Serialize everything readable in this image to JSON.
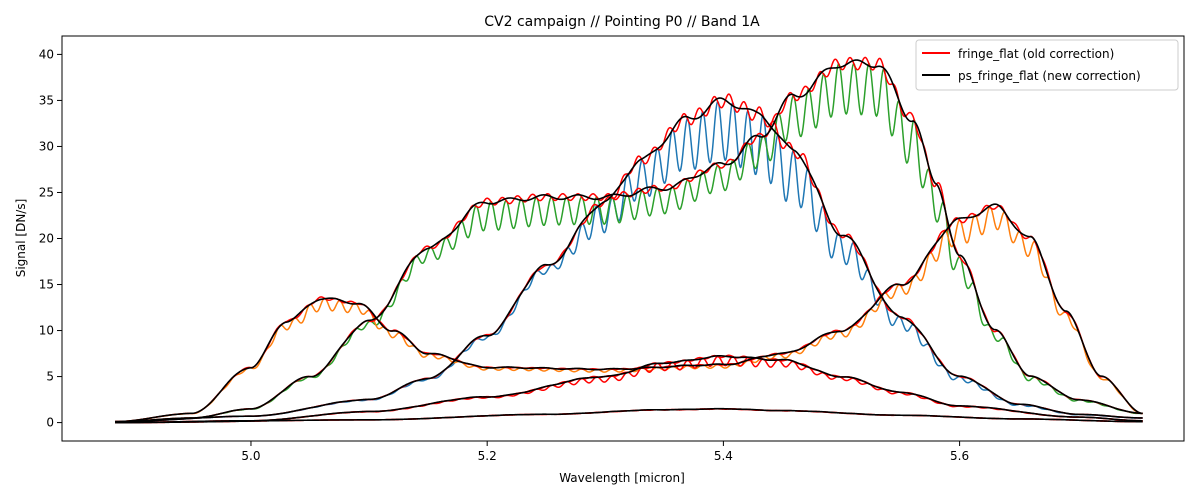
{
  "chart_data": {
    "type": "line",
    "title": "CV2 campaign // Pointing P0 // Band 1A",
    "xlabel": "Wavelength [micron]",
    "ylabel": "Signal [DN/s]",
    "xlim": [
      4.84,
      5.79
    ],
    "ylim": [
      -2,
      42
    ],
    "xticks": [
      5.0,
      5.2,
      5.4,
      5.6
    ],
    "xtick_labels": [
      "5.0",
      "5.2",
      "5.4",
      "5.6"
    ],
    "yticks": [
      0,
      5,
      10,
      15,
      20,
      25,
      30,
      35,
      40
    ],
    "ytick_labels": [
      "0",
      "5",
      "10",
      "15",
      "20",
      "25",
      "30",
      "35",
      "40"
    ],
    "grid": false,
    "legend_position": "upper-right",
    "legend": [
      {
        "label": "fringe_flat (old correction)",
        "color": "#ff0000"
      },
      {
        "label": "ps_fringe_flat (new correction)",
        "color": "#000000"
      }
    ],
    "colors": {
      "blue": "#1f77b4",
      "orange": "#ff7f0e",
      "green": "#2ca02c",
      "red": "#ff0000",
      "black": "#000000"
    },
    "x_range": [
      4.885,
      5.755
    ],
    "fringe_period_micron": 0.0128,
    "profiles": [
      {
        "color_key": "blue",
        "fringe_amplitude": [
          [
            4.885,
            0.02
          ],
          [
            5.25,
            0.05
          ],
          [
            5.3,
            0.14
          ],
          [
            5.45,
            0.2
          ],
          [
            5.55,
            0.12
          ],
          [
            5.755,
            0.05
          ]
        ],
        "envelope": [
          [
            4.885,
            0.1
          ],
          [
            5.0,
            0.7
          ],
          [
            5.1,
            2.5
          ],
          [
            5.15,
            4.8
          ],
          [
            5.2,
            9.5
          ],
          [
            5.25,
            17.0
          ],
          [
            5.3,
            24.0
          ],
          [
            5.33,
            28.5
          ],
          [
            5.37,
            33.0
          ],
          [
            5.4,
            35.0
          ],
          [
            5.43,
            33.5
          ],
          [
            5.46,
            29.5
          ],
          [
            5.5,
            20.5
          ],
          [
            5.55,
            11.5
          ],
          [
            5.6,
            5.0
          ],
          [
            5.65,
            2.0
          ],
          [
            5.7,
            0.9
          ],
          [
            5.755,
            0.5
          ]
        ]
      },
      {
        "color_key": "green",
        "fringe_amplitude": [
          [
            4.885,
            0.02
          ],
          [
            5.05,
            0.05
          ],
          [
            5.15,
            0.08
          ],
          [
            5.2,
            0.13
          ],
          [
            5.3,
            0.12
          ],
          [
            5.4,
            0.1
          ],
          [
            5.5,
            0.14
          ],
          [
            5.58,
            0.16
          ],
          [
            5.65,
            0.1
          ],
          [
            5.755,
            0.05
          ]
        ],
        "envelope": [
          [
            4.885,
            0.1
          ],
          [
            4.95,
            0.5
          ],
          [
            5.0,
            1.5
          ],
          [
            5.05,
            5.0
          ],
          [
            5.1,
            11.0
          ],
          [
            5.15,
            19.0
          ],
          [
            5.2,
            24.0
          ],
          [
            5.25,
            24.5
          ],
          [
            5.3,
            24.5
          ],
          [
            5.35,
            25.5
          ],
          [
            5.4,
            28.0
          ],
          [
            5.43,
            31.0
          ],
          [
            5.46,
            35.5
          ],
          [
            5.5,
            39.0
          ],
          [
            5.53,
            39.0
          ],
          [
            5.56,
            33.0
          ],
          [
            5.58,
            26.0
          ],
          [
            5.6,
            18.0
          ],
          [
            5.63,
            10.0
          ],
          [
            5.66,
            5.0
          ],
          [
            5.7,
            2.5
          ],
          [
            5.755,
            1.0
          ]
        ]
      },
      {
        "color_key": "orange",
        "fringe_amplitude": [
          [
            4.885,
            0.02
          ],
          [
            5.0,
            0.05
          ],
          [
            5.05,
            0.1
          ],
          [
            5.1,
            0.08
          ],
          [
            5.2,
            0.05
          ],
          [
            5.4,
            0.06
          ],
          [
            5.55,
            0.08
          ],
          [
            5.6,
            0.12
          ],
          [
            5.65,
            0.1
          ],
          [
            5.755,
            0.05
          ]
        ],
        "envelope": [
          [
            4.885,
            0.1
          ],
          [
            4.95,
            1.0
          ],
          [
            5.0,
            6.0
          ],
          [
            5.03,
            11.0
          ],
          [
            5.06,
            13.5
          ],
          [
            5.09,
            13.0
          ],
          [
            5.12,
            10.0
          ],
          [
            5.15,
            7.5
          ],
          [
            5.2,
            6.0
          ],
          [
            5.3,
            5.8
          ],
          [
            5.4,
            6.3
          ],
          [
            5.45,
            7.5
          ],
          [
            5.5,
            10.0
          ],
          [
            5.55,
            15.0
          ],
          [
            5.6,
            22.0
          ],
          [
            5.63,
            23.5
          ],
          [
            5.66,
            20.0
          ],
          [
            5.69,
            12.0
          ],
          [
            5.72,
            5.0
          ],
          [
            5.755,
            1.0
          ]
        ]
      },
      {
        "color_key": "red",
        "fringe_amplitude": [
          [
            4.885,
            0.02
          ],
          [
            5.2,
            0.05
          ],
          [
            5.3,
            0.12
          ],
          [
            5.4,
            0.14
          ],
          [
            5.5,
            0.08
          ],
          [
            5.755,
            0.03
          ]
        ],
        "envelope": [
          [
            4.885,
            0.0
          ],
          [
            5.0,
            0.2
          ],
          [
            5.1,
            1.2
          ],
          [
            5.2,
            2.8
          ],
          [
            5.3,
            5.0
          ],
          [
            5.35,
            6.5
          ],
          [
            5.4,
            7.2
          ],
          [
            5.45,
            6.8
          ],
          [
            5.5,
            5.0
          ],
          [
            5.55,
            3.3
          ],
          [
            5.6,
            1.8
          ],
          [
            5.7,
            0.6
          ],
          [
            5.755,
            0.2
          ]
        ]
      },
      {
        "color_key": "red",
        "fringe_amplitude": [
          [
            4.885,
            0.01
          ],
          [
            5.4,
            0.03
          ],
          [
            5.755,
            0.01
          ]
        ],
        "envelope": [
          [
            4.885,
            0.0
          ],
          [
            5.1,
            0.3
          ],
          [
            5.25,
            0.9
          ],
          [
            5.35,
            1.4
          ],
          [
            5.4,
            1.5
          ],
          [
            5.45,
            1.3
          ],
          [
            5.55,
            0.8
          ],
          [
            5.65,
            0.4
          ],
          [
            5.755,
            0.1
          ]
        ]
      }
    ]
  }
}
